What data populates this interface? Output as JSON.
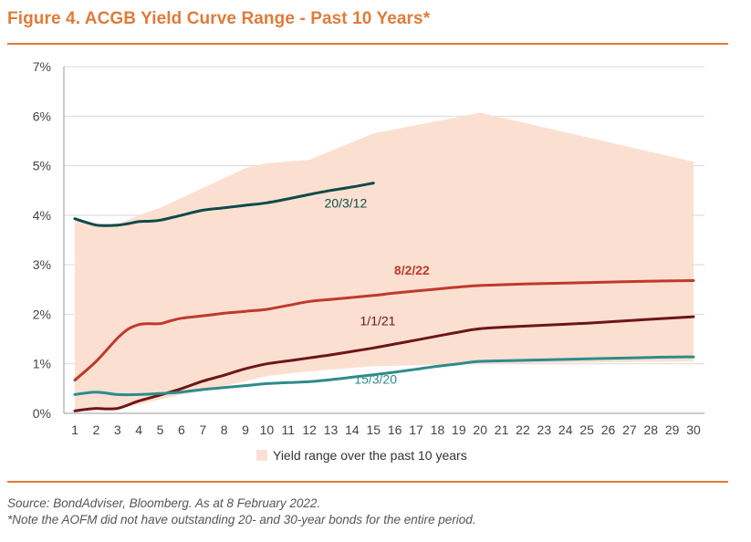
{
  "title": "Figure 4. ACGB Yield Curve Range - Past 10 Years*",
  "notes": {
    "source": "Source: BondAdviser, Bloomberg. As at 8 February 2022.",
    "footnote": "*Note the AOFM did not have outstanding 20- and 30-year bonds for the entire period."
  },
  "colors": {
    "accent": "#e07b39",
    "range_fill": "#fbe0d1",
    "grid": "#d9d9d9"
  },
  "chart_data": {
    "type": "line",
    "title": "Figure 4. ACGB Yield Curve Range - Past 10 Years*",
    "xlabel": "",
    "ylabel": "",
    "ylim": [
      0,
      7
    ],
    "y_ticks": [
      0,
      1,
      2,
      3,
      4,
      5,
      6,
      7
    ],
    "y_tick_labels": [
      "0%",
      "1%",
      "2%",
      "3%",
      "4%",
      "5%",
      "6%",
      "7%"
    ],
    "x_ticks": [
      1,
      2,
      3,
      4,
      5,
      6,
      7,
      8,
      9,
      10,
      11,
      12,
      13,
      14,
      15,
      16,
      17,
      18,
      19,
      20,
      21,
      22,
      23,
      24,
      25,
      26,
      27,
      28,
      29,
      30
    ],
    "x_tick_labels": [
      "1",
      "2",
      "3",
      "4",
      "5",
      "6",
      "7",
      "8",
      "9",
      "10",
      "11",
      "12",
      "13",
      "14",
      "15",
      "16",
      "17",
      "18",
      "19",
      "20",
      "21",
      "22",
      "23",
      "24",
      "25",
      "26",
      "27",
      "28",
      "29",
      "30"
    ],
    "grid": true,
    "legend": {
      "label": "Yield range over the past 10 years",
      "placement": "bottom"
    },
    "range": {
      "name": "Yield range over the past 10 years",
      "x": [
        1,
        2,
        3,
        4,
        5,
        6,
        7,
        8,
        9,
        10,
        12,
        15,
        20,
        30
      ],
      "high": [
        3.95,
        3.82,
        3.82,
        4.0,
        4.15,
        4.35,
        4.55,
        4.75,
        4.95,
        5.05,
        5.12,
        5.65,
        6.07,
        5.08
      ],
      "low": [
        0.05,
        0.08,
        0.1,
        0.18,
        0.28,
        0.38,
        0.45,
        0.55,
        0.65,
        0.75,
        0.85,
        0.95,
        1.0,
        1.05
      ],
      "color": "#fbe0d1"
    },
    "series": [
      {
        "name": "20/3/12",
        "label": "20/3/12",
        "color": "#0d4a4a",
        "label_bold": false,
        "x": [
          1,
          1.5,
          2,
          2.5,
          3,
          3.5,
          4,
          4.5,
          5,
          6,
          7,
          8,
          9,
          10,
          11,
          12,
          13,
          14,
          15
        ],
        "values": [
          3.93,
          3.86,
          3.8,
          3.79,
          3.8,
          3.83,
          3.87,
          3.88,
          3.9,
          4.0,
          4.1,
          4.15,
          4.2,
          4.25,
          4.33,
          4.42,
          4.5,
          4.57,
          4.65
        ],
        "label_at": [
          13.7,
          4.15
        ]
      },
      {
        "name": "8/2/22",
        "label": "8/2/22",
        "color": "#c0392b",
        "label_bold": true,
        "x": [
          1,
          2,
          3,
          3.5,
          4,
          4.5,
          5,
          5.5,
          6,
          7,
          8,
          9,
          10,
          11,
          12,
          13,
          14,
          15,
          16,
          17,
          18,
          19,
          20,
          22,
          25,
          28,
          30
        ],
        "values": [
          0.67,
          1.05,
          1.52,
          1.7,
          1.79,
          1.81,
          1.81,
          1.87,
          1.92,
          1.97,
          2.02,
          2.06,
          2.1,
          2.18,
          2.26,
          2.3,
          2.34,
          2.38,
          2.43,
          2.47,
          2.51,
          2.55,
          2.58,
          2.61,
          2.64,
          2.67,
          2.68
        ],
        "label_at": [
          16.8,
          2.8
        ]
      },
      {
        "name": "1/1/21",
        "label": "1/1/21",
        "color": "#6e1515",
        "label_bold": false,
        "x": [
          1,
          1.5,
          2,
          2.5,
          3,
          3.5,
          4,
          5,
          6,
          7,
          8,
          9,
          10,
          11,
          12,
          13,
          14,
          15,
          16,
          17,
          18,
          19,
          20,
          22,
          25,
          28,
          30
        ],
        "values": [
          0.05,
          0.08,
          0.1,
          0.09,
          0.1,
          0.17,
          0.25,
          0.37,
          0.5,
          0.65,
          0.77,
          0.9,
          1.0,
          1.06,
          1.12,
          1.18,
          1.25,
          1.32,
          1.4,
          1.48,
          1.56,
          1.64,
          1.71,
          1.76,
          1.82,
          1.9,
          1.95
        ],
        "label_at": [
          15.2,
          1.78
        ]
      },
      {
        "name": "15/3/20",
        "label": "15/3/20",
        "color": "#2e8b8b",
        "label_bold": false,
        "x": [
          1,
          2,
          3,
          4,
          5,
          6,
          7,
          8,
          9,
          10,
          11,
          12,
          13,
          14,
          15,
          16,
          17,
          18,
          19,
          20,
          22,
          25,
          28,
          30
        ],
        "values": [
          0.38,
          0.43,
          0.38,
          0.38,
          0.4,
          0.43,
          0.48,
          0.52,
          0.56,
          0.6,
          0.62,
          0.64,
          0.68,
          0.73,
          0.78,
          0.83,
          0.89,
          0.95,
          1.0,
          1.05,
          1.07,
          1.1,
          1.13,
          1.14
        ],
        "label_at": [
          15.1,
          0.6
        ]
      }
    ]
  }
}
